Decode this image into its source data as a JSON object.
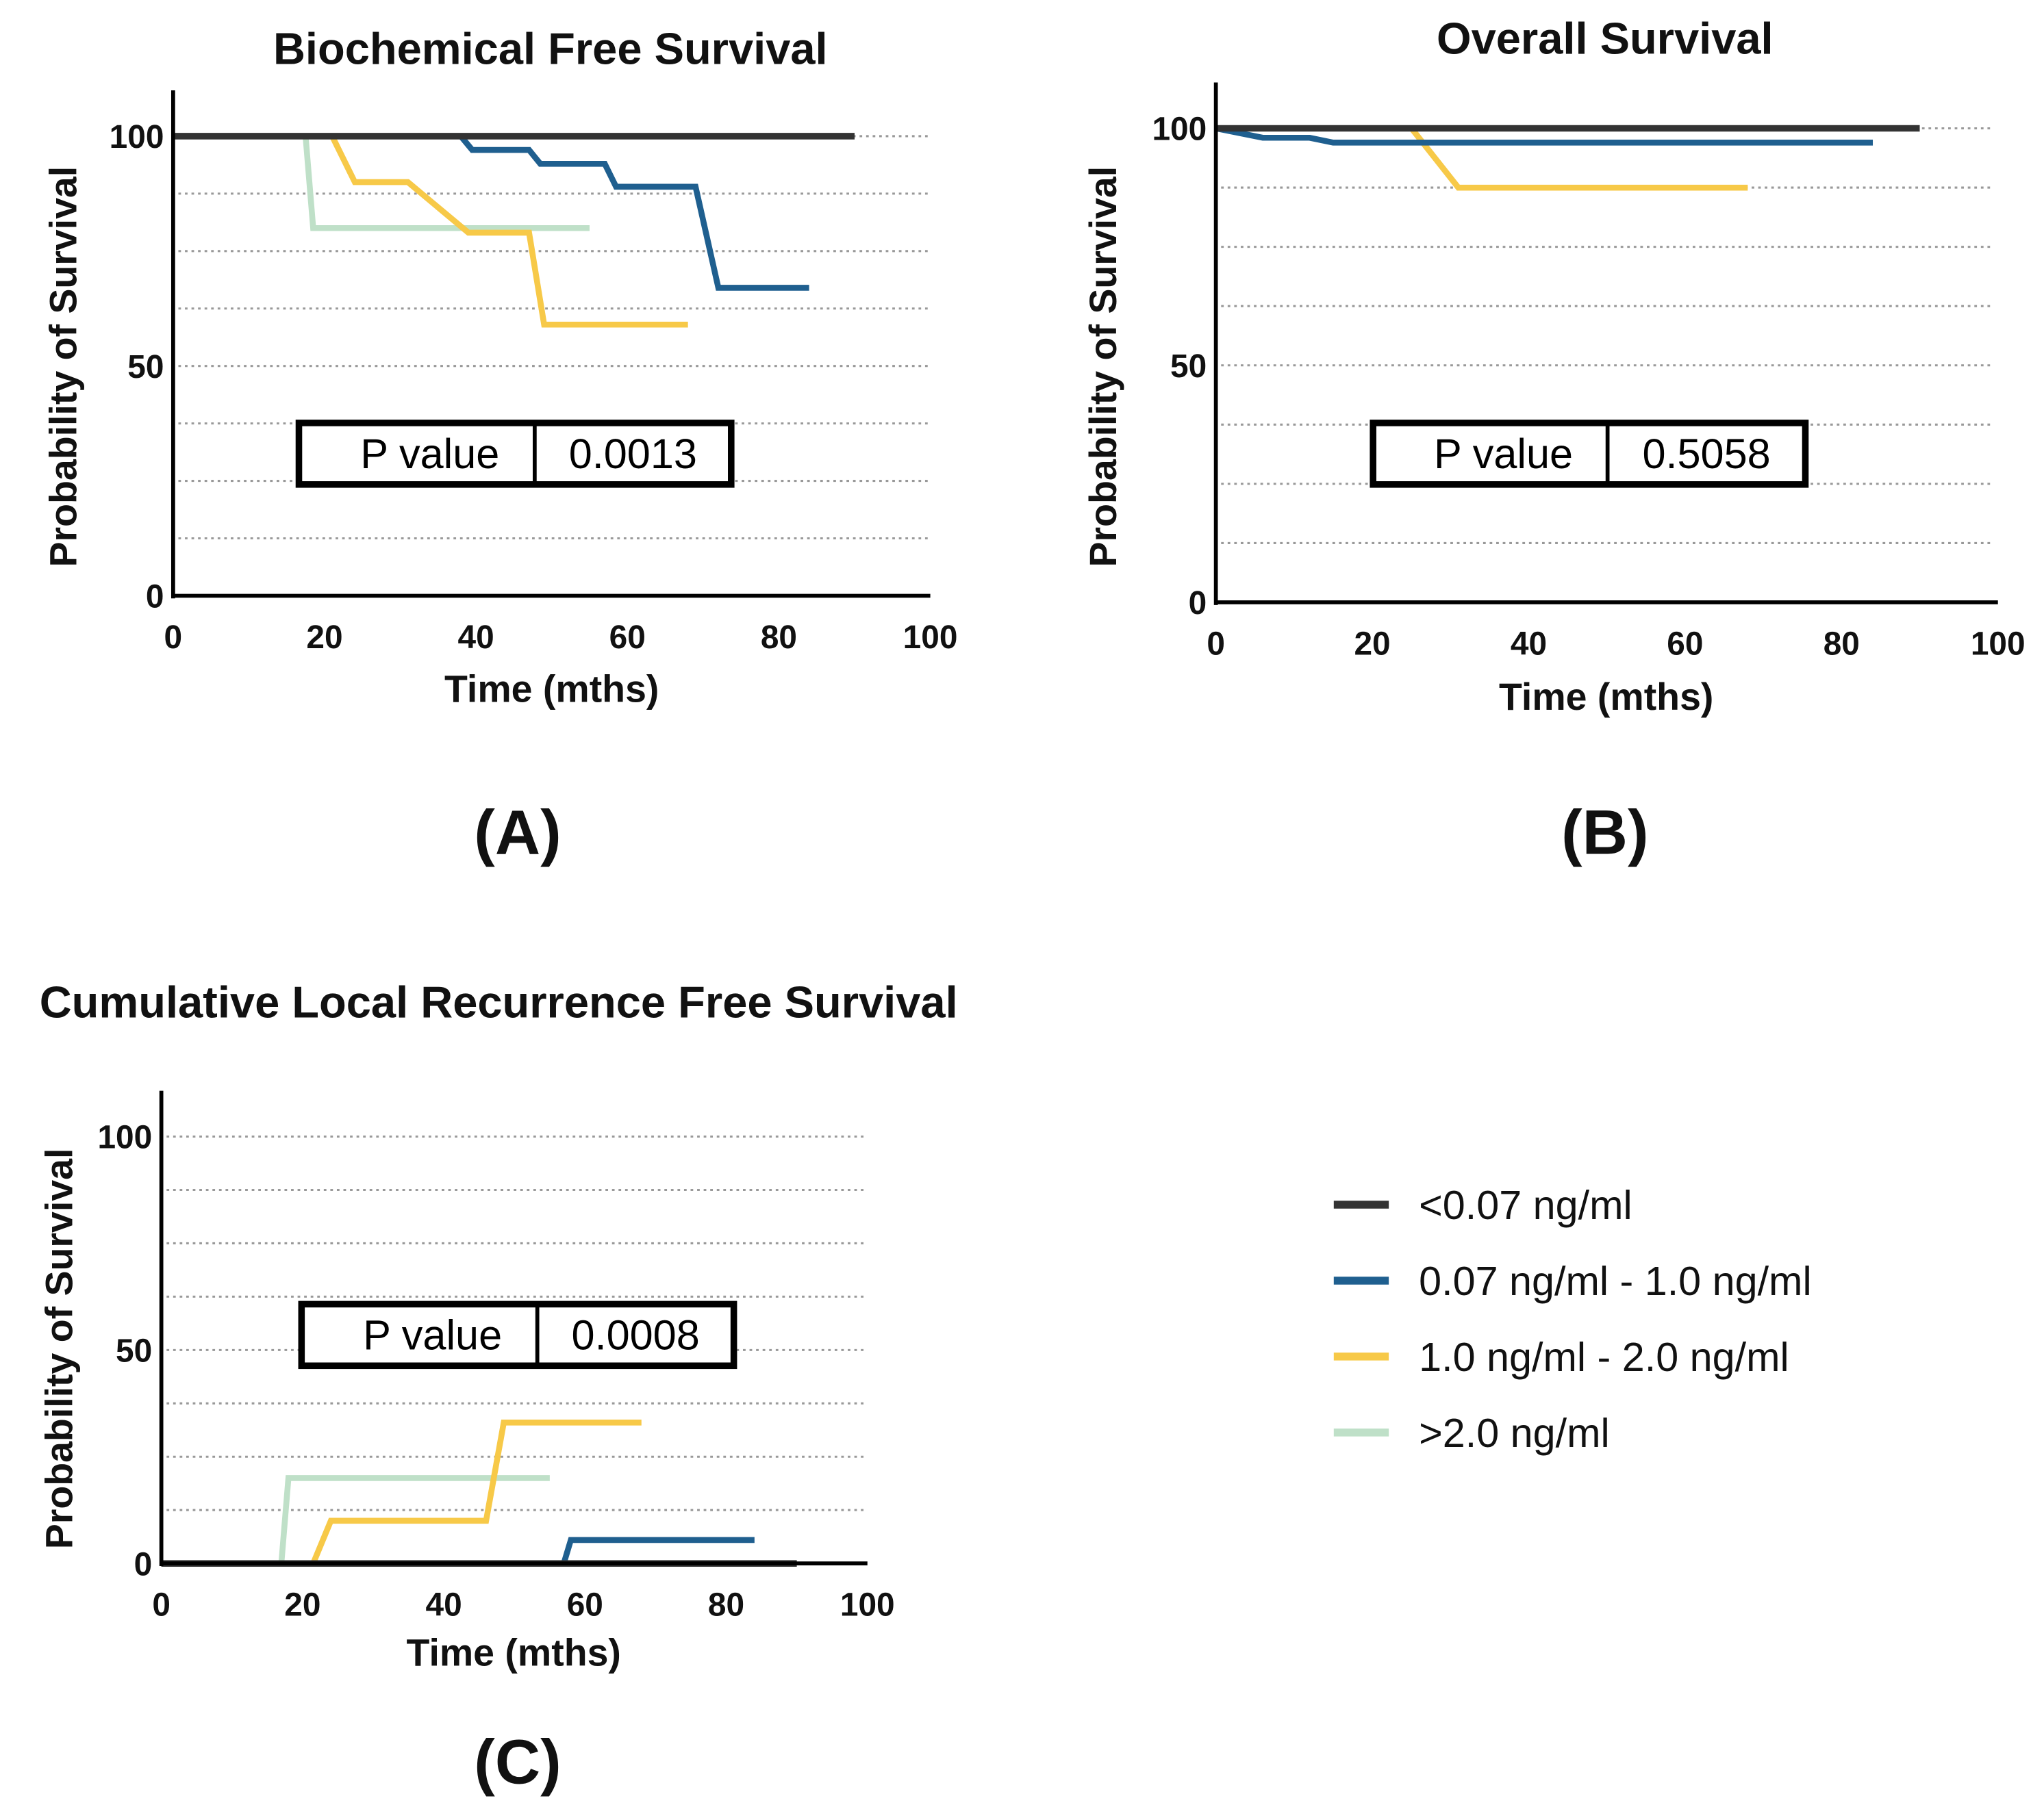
{
  "colors": {
    "lt007": "#333333",
    "r007_1": "#1f5f8f",
    "r1_2": "#f7c948",
    "gt2": "#bfe0c8"
  },
  "legend": [
    {
      "key": "lt007",
      "label": "<0.07 ng/ml"
    },
    {
      "key": "r007_1",
      "label": "0.07 ng/ml - 1.0 ng/ml"
    },
    {
      "key": "r1_2",
      "label": "1.0 ng/ml - 2.0 ng/ml"
    },
    {
      "key": "gt2",
      "label": ">2.0 ng/ml"
    }
  ],
  "chart_data": [
    {
      "type": "line",
      "panel": "(A)",
      "title": "Biochemical  Free  Survival",
      "xlabel": "Time (mths)",
      "ylabel": "Probability of Survival",
      "xlim": [
        0,
        100
      ],
      "ylim": [
        0,
        100
      ],
      "xticks": [
        "0",
        "20",
        "40",
        "60",
        "80",
        "100"
      ],
      "yticks": [
        "0",
        "50",
        "100"
      ],
      "grid": "dotted horizontal every 12.5",
      "p_value_label": "P value",
      "p_value": "0.0013",
      "series": [
        {
          "key": "gt2",
          "points": [
            [
              0,
              100
            ],
            [
              17.5,
              100
            ],
            [
              18.5,
              80
            ],
            [
              55,
              80
            ]
          ]
        },
        {
          "key": "r1_2",
          "points": [
            [
              0,
              100
            ],
            [
              21,
              100
            ],
            [
              24,
              90
            ],
            [
              31,
              90
            ],
            [
              39,
              79
            ],
            [
              47,
              79
            ],
            [
              49,
              59
            ],
            [
              68,
              59
            ]
          ]
        },
        {
          "key": "r007_1",
          "points": [
            [
              0,
              100
            ],
            [
              38,
              100
            ],
            [
              39.5,
              97
            ],
            [
              47,
              97
            ],
            [
              48.5,
              94
            ],
            [
              57,
              94
            ],
            [
              58.5,
              89
            ],
            [
              69,
              89
            ],
            [
              72,
              67
            ],
            [
              84,
              67
            ]
          ]
        },
        {
          "key": "lt007",
          "points": [
            [
              0,
              100
            ],
            [
              90,
              100
            ]
          ]
        }
      ]
    },
    {
      "type": "line",
      "panel": "(B)",
      "title": "Overall  Survival",
      "xlabel": "Time (mths)",
      "ylabel": "Probability of Survival",
      "xlim": [
        0,
        100
      ],
      "ylim": [
        0,
        100
      ],
      "xticks": [
        "0",
        "20",
        "40",
        "60",
        "80",
        "100"
      ],
      "yticks": [
        "0",
        "50",
        "100"
      ],
      "grid": "dotted horizontal every 12.5",
      "p_value_label": "P value",
      "p_value": "0.5058",
      "series": [
        {
          "key": "r1_2",
          "points": [
            [
              0,
              100
            ],
            [
              25,
              100
            ],
            [
              31,
              87.5
            ],
            [
              68,
              87.5
            ]
          ]
        },
        {
          "key": "r007_1",
          "points": [
            [
              0,
              100
            ],
            [
              6,
              98
            ],
            [
              12,
              98
            ],
            [
              15,
              97
            ],
            [
              84,
              97
            ]
          ]
        },
        {
          "key": "lt007",
          "points": [
            [
              0,
              100
            ],
            [
              90,
              100
            ]
          ]
        }
      ]
    },
    {
      "type": "line",
      "panel": "(C)",
      "title": "Cumulative Local Recurrence  Free Survival",
      "xlabel": "Time (mths)",
      "ylabel": "Probability of Survival",
      "xlim": [
        0,
        100
      ],
      "ylim": [
        0,
        100
      ],
      "xticks": [
        "0",
        "20",
        "40",
        "60",
        "80",
        "100"
      ],
      "yticks": [
        "0",
        "50",
        "100"
      ],
      "grid": "dotted horizontal every 12.5",
      "p_value_label": "P value",
      "p_value": "0.0008",
      "series": [
        {
          "key": "gt2",
          "points": [
            [
              0,
              0
            ],
            [
              17,
              0
            ],
            [
              18,
              20
            ],
            [
              55,
              20
            ]
          ]
        },
        {
          "key": "r1_2",
          "points": [
            [
              0,
              0
            ],
            [
              21.5,
              0
            ],
            [
              24,
              10
            ],
            [
              46,
              10
            ],
            [
              48.5,
              33
            ],
            [
              68,
              33
            ]
          ]
        },
        {
          "key": "r007_1",
          "points": [
            [
              0,
              0
            ],
            [
              57,
              0
            ],
            [
              58,
              5.5
            ],
            [
              84,
              5.5
            ]
          ]
        },
        {
          "key": "lt007",
          "points": [
            [
              0,
              0
            ],
            [
              90,
              0
            ]
          ]
        }
      ]
    }
  ]
}
